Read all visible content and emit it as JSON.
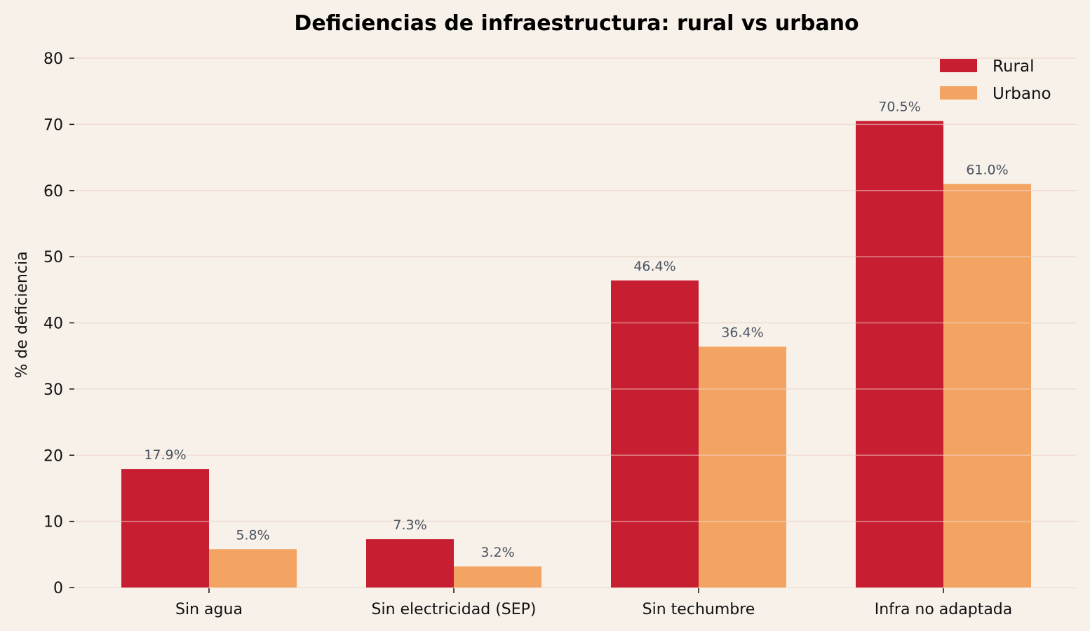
{
  "chart_data": {
    "type": "bar",
    "title": "Deficiencias de infraestructura: rural vs urbano",
    "xlabel": "",
    "ylabel": "% de deficiencia",
    "ylim": [
      0,
      80
    ],
    "yticks": [
      0,
      10,
      20,
      30,
      40,
      50,
      60,
      70,
      80
    ],
    "grid": true,
    "legend_position": "top-right",
    "categories": [
      "Sin agua",
      "Sin electricidad (SEP)",
      "Sin techumbre",
      "Infra no adaptada"
    ],
    "series": [
      {
        "name": "Rural",
        "color": "#c81e32",
        "values": [
          17.9,
          7.3,
          46.4,
          70.5
        ],
        "labels": [
          "17.9%",
          "7.3%",
          "46.4%",
          "70.5%"
        ]
      },
      {
        "name": "Urbano",
        "color": "#f3a463",
        "values": [
          5.8,
          3.2,
          36.4,
          61.0
        ],
        "labels": [
          "5.8%",
          "3.2%",
          "36.4%",
          "61.0%"
        ]
      }
    ]
  }
}
